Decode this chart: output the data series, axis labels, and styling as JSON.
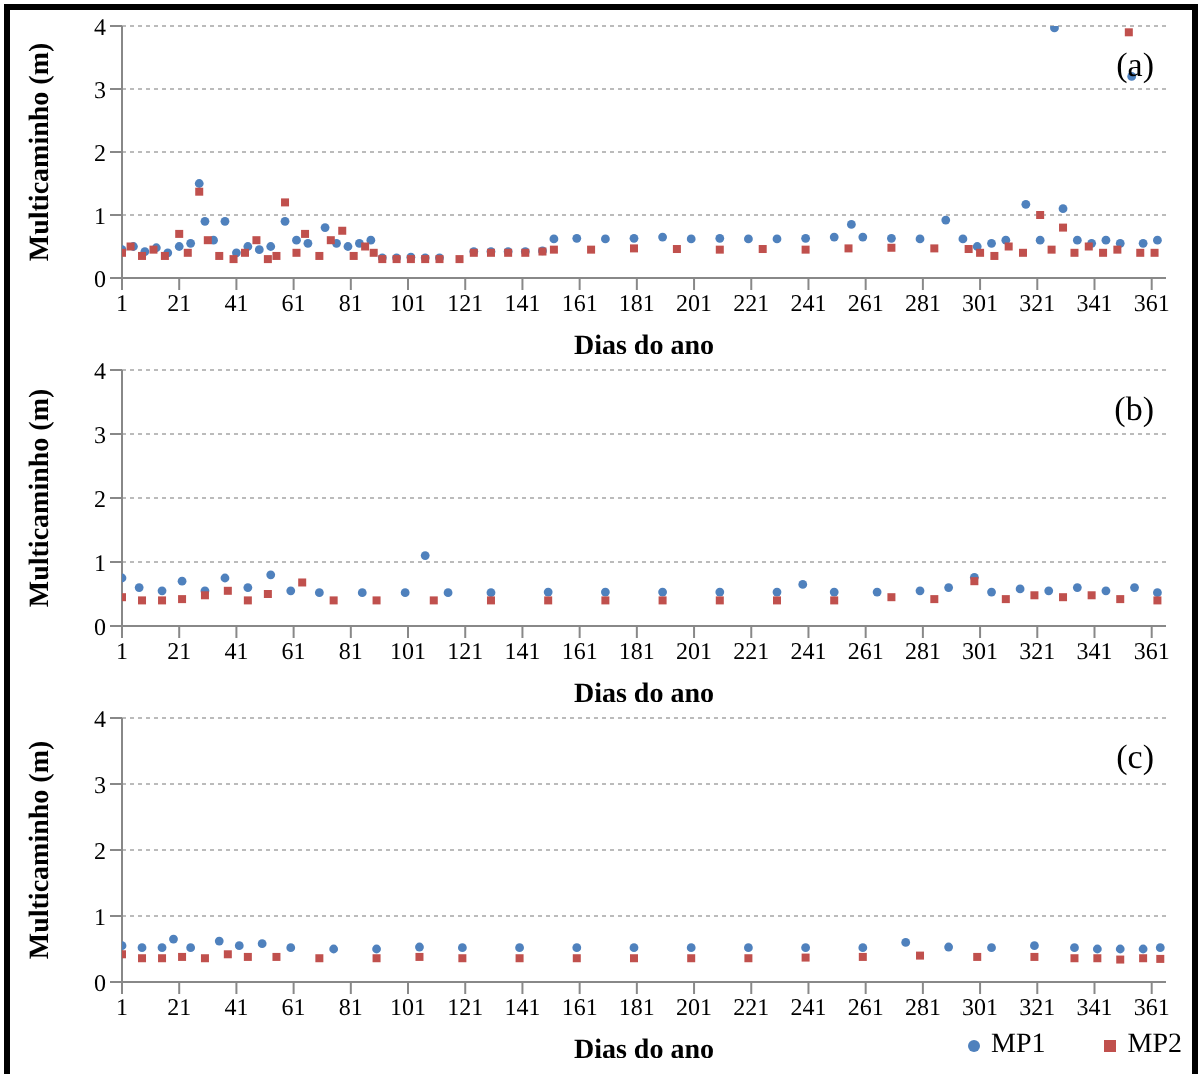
{
  "chart_data": [
    {
      "type": "scatter",
      "xlabel": "Dias do ano",
      "ylabel": "Multicaminho (m)",
      "annotations": [
        "(a)"
      ],
      "xlim": [
        1,
        366
      ],
      "xticks": [
        1,
        21,
        41,
        61,
        81,
        101,
        121,
        141,
        161,
        181,
        201,
        221,
        241,
        261,
        281,
        301,
        321,
        341,
        361
      ],
      "ylim": [
        0,
        4
      ],
      "yticks": [
        0,
        1,
        2,
        3,
        4
      ],
      "grid": "y",
      "legend": false,
      "series": [
        {
          "color": "#4f81bd",
          "marker": "circle",
          "x": [
            1,
            5,
            9,
            13,
            17,
            21,
            25,
            28,
            30,
            33,
            37,
            41,
            45,
            49,
            53,
            58,
            62,
            66,
            72,
            76,
            80,
            84,
            88,
            92,
            97,
            102,
            107,
            112,
            124,
            130,
            136,
            142,
            148,
            152,
            160,
            170,
            180,
            190,
            200,
            210,
            220,
            230,
            240,
            250,
            256,
            260,
            270,
            280,
            289,
            295,
            300,
            305,
            310,
            317,
            322,
            327,
            330,
            335,
            340,
            345,
            350,
            354,
            358,
            363
          ],
          "values": [
            0.45,
            0.5,
            0.42,
            0.48,
            0.4,
            0.5,
            0.55,
            1.5,
            0.9,
            0.6,
            0.9,
            0.4,
            0.5,
            0.45,
            0.5,
            0.9,
            0.6,
            0.55,
            0.8,
            0.55,
            0.5,
            0.55,
            0.6,
            0.32,
            0.32,
            0.33,
            0.32,
            0.32,
            0.42,
            0.42,
            0.42,
            0.42,
            0.43,
            0.62,
            0.63,
            0.62,
            0.63,
            0.65,
            0.62,
            0.63,
            0.62,
            0.62,
            0.63,
            0.65,
            0.85,
            0.65,
            0.63,
            0.62,
            0.92,
            0.62,
            0.5,
            0.55,
            0.6,
            1.17,
            0.6,
            3.97,
            1.1,
            0.6,
            0.55,
            0.6,
            0.55,
            3.2,
            0.55,
            0.6
          ]
        },
        {
          "color": "#c0504d",
          "marker": "square",
          "x": [
            1,
            4,
            8,
            12,
            16,
            21,
            24,
            28,
            31,
            35,
            40,
            44,
            48,
            52,
            55,
            58,
            62,
            65,
            70,
            74,
            78,
            82,
            86,
            89,
            92,
            97,
            102,
            107,
            112,
            119,
            124,
            130,
            136,
            142,
            148,
            152,
            165,
            180,
            195,
            210,
            225,
            240,
            255,
            270,
            285,
            297,
            301,
            306,
            311,
            316,
            322,
            326,
            330,
            334,
            339,
            344,
            349,
            353,
            357,
            362
          ],
          "values": [
            0.4,
            0.5,
            0.35,
            0.45,
            0.35,
            0.7,
            0.4,
            1.37,
            0.6,
            0.35,
            0.3,
            0.4,
            0.6,
            0.3,
            0.35,
            1.2,
            0.4,
            0.7,
            0.35,
            0.6,
            0.75,
            0.35,
            0.5,
            0.4,
            0.3,
            0.3,
            0.3,
            0.3,
            0.3,
            0.3,
            0.4,
            0.4,
            0.4,
            0.4,
            0.42,
            0.45,
            0.45,
            0.47,
            0.46,
            0.45,
            0.46,
            0.45,
            0.47,
            0.48,
            0.47,
            0.46,
            0.4,
            0.35,
            0.5,
            0.4,
            1.0,
            0.45,
            0.8,
            0.4,
            0.5,
            0.4,
            0.45,
            3.9,
            0.4,
            0.4
          ]
        }
      ]
    },
    {
      "type": "scatter",
      "xlabel": "Dias do ano",
      "ylabel": "Multicaminho (m)",
      "annotations": [
        "(b)"
      ],
      "xlim": [
        1,
        366
      ],
      "xticks": [
        1,
        21,
        41,
        61,
        81,
        101,
        121,
        141,
        161,
        181,
        201,
        221,
        241,
        261,
        281,
        301,
        321,
        341,
        361
      ],
      "ylim": [
        0,
        4
      ],
      "yticks": [
        0,
        1,
        2,
        3,
        4
      ],
      "grid": "y",
      "legend": false,
      "series": [
        {
          "color": "#4f81bd",
          "marker": "circle",
          "x": [
            1,
            7,
            15,
            22,
            30,
            37,
            45,
            53,
            60,
            70,
            85,
            100,
            107,
            115,
            130,
            150,
            170,
            190,
            210,
            230,
            239,
            250,
            265,
            280,
            290,
            299,
            305,
            315,
            325,
            335,
            345,
            355,
            363
          ],
          "values": [
            0.75,
            0.6,
            0.55,
            0.7,
            0.55,
            0.75,
            0.6,
            0.8,
            0.55,
            0.52,
            0.52,
            0.52,
            1.1,
            0.52,
            0.52,
            0.53,
            0.53,
            0.53,
            0.53,
            0.53,
            0.65,
            0.53,
            0.53,
            0.55,
            0.6,
            0.76,
            0.53,
            0.58,
            0.55,
            0.6,
            0.55,
            0.6,
            0.52
          ]
        },
        {
          "color": "#c0504d",
          "marker": "square",
          "x": [
            1,
            8,
            15,
            22,
            30,
            38,
            45,
            52,
            64,
            75,
            90,
            110,
            130,
            150,
            170,
            190,
            210,
            230,
            250,
            270,
            285,
            299,
            310,
            320,
            330,
            340,
            350,
            363
          ],
          "values": [
            0.45,
            0.4,
            0.4,
            0.42,
            0.48,
            0.55,
            0.4,
            0.5,
            0.68,
            0.4,
            0.4,
            0.4,
            0.4,
            0.4,
            0.4,
            0.4,
            0.4,
            0.4,
            0.4,
            0.45,
            0.42,
            0.7,
            0.42,
            0.48,
            0.45,
            0.48,
            0.42,
            0.4
          ]
        }
      ]
    },
    {
      "type": "scatter",
      "xlabel": "Dias do ano",
      "ylabel": "Multicaminho (m)",
      "annotations": [
        "(c)"
      ],
      "xlim": [
        1,
        366
      ],
      "xticks": [
        1,
        21,
        41,
        61,
        81,
        101,
        121,
        141,
        161,
        181,
        201,
        221,
        241,
        261,
        281,
        301,
        321,
        341,
        361
      ],
      "ylim": [
        0,
        4
      ],
      "yticks": [
        0,
        1,
        2,
        3,
        4
      ],
      "grid": "y",
      "legend": "bottom right",
      "series": [
        {
          "name": "MP1",
          "color": "#4f81bd",
          "marker": "circle",
          "x": [
            1,
            8,
            15,
            19,
            25,
            35,
            42,
            50,
            60,
            75,
            90,
            105,
            120,
            140,
            160,
            180,
            200,
            220,
            240,
            260,
            275,
            290,
            305,
            320,
            334,
            342,
            350,
            358,
            364
          ],
          "values": [
            0.55,
            0.52,
            0.52,
            0.65,
            0.52,
            0.62,
            0.55,
            0.58,
            0.52,
            0.5,
            0.5,
            0.53,
            0.52,
            0.52,
            0.52,
            0.52,
            0.52,
            0.52,
            0.52,
            0.52,
            0.6,
            0.53,
            0.52,
            0.55,
            0.52,
            0.5,
            0.5,
            0.5,
            0.52
          ]
        },
        {
          "name": "MP2",
          "color": "#c0504d",
          "marker": "square",
          "x": [
            1,
            8,
            15,
            22,
            30,
            38,
            45,
            55,
            70,
            90,
            105,
            120,
            140,
            160,
            180,
            200,
            220,
            240,
            260,
            280,
            300,
            320,
            334,
            342,
            350,
            358,
            364
          ],
          "values": [
            0.42,
            0.36,
            0.36,
            0.38,
            0.36,
            0.42,
            0.38,
            0.38,
            0.36,
            0.36,
            0.38,
            0.36,
            0.36,
            0.36,
            0.36,
            0.36,
            0.36,
            0.37,
            0.38,
            0.4,
            0.38,
            0.38,
            0.36,
            0.36,
            0.34,
            0.36,
            0.35
          ]
        }
      ]
    }
  ]
}
